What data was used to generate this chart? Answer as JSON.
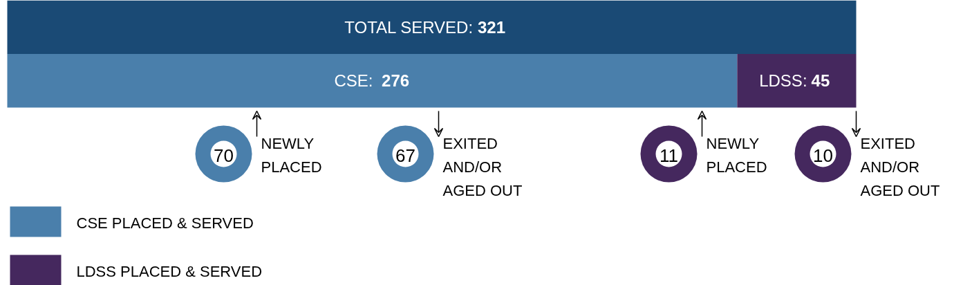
{
  "chart_data": {
    "type": "bar",
    "orientation": "horizontal",
    "stacked": true,
    "categories": [
      null,
      null
    ],
    "xlim": [
      0,
      321
    ],
    "tick_labels": false,
    "grid": false,
    "legend": "bottom left",
    "series": [
      {
        "color": "#1a4a75",
        "values": [
          321,
          null
        ],
        "value_labels": [
          "TOTAL SERVED: 321",
          null
        ]
      },
      {
        "name": "CSE PLACED & SERVED",
        "color": "#4a7fab",
        "values": [
          null,
          276
        ],
        "value_labels": [
          null,
          "CSE:  276"
        ]
      },
      {
        "name": "LDSS PLACED & SERVED",
        "color": "#45285e",
        "values": [
          null,
          45
        ],
        "value_labels": [
          null,
          "LDSS: 45"
        ]
      }
    ],
    "annotations": [
      "70",
      "NEWLY PLACED",
      "67",
      "EXITED AND/OR AGED OUT",
      "11",
      "NEWLY PLACED",
      "10",
      "EXITED AND/OR AGED OUT"
    ]
  }
}
